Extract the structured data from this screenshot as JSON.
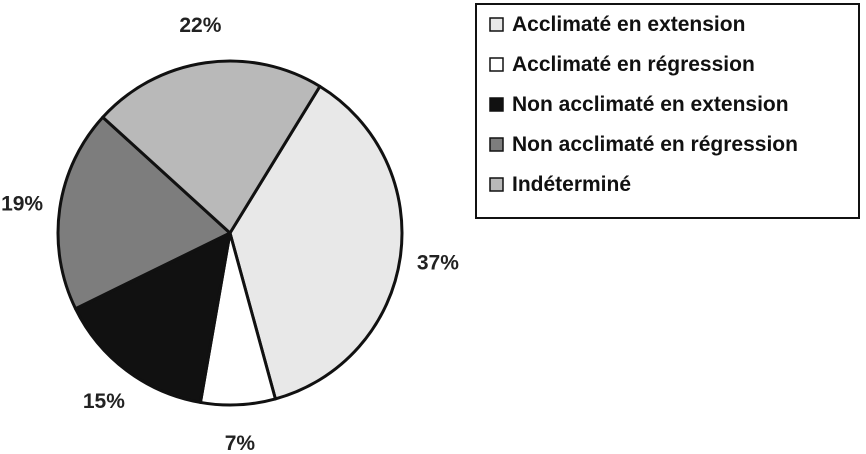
{
  "chart_data": {
    "type": "pie",
    "title": "",
    "legend_position": "top-right",
    "slices": [
      {
        "label": "Acclimaté en extension",
        "value": 37,
        "percent_label": "37%",
        "color": "#e8e8e8"
      },
      {
        "label": "Acclimaté en régression",
        "value": 7,
        "percent_label": "7%",
        "color": "#ffffff"
      },
      {
        "label": "Non acclimaté en extension",
        "value": 15,
        "percent_label": "15%",
        "color": "#111111"
      },
      {
        "label": "Non acclimaté en régression",
        "value": 19,
        "percent_label": "19%",
        "color": "#7d7d7d"
      },
      {
        "label": "Indéterminé",
        "value": 22,
        "percent_label": "22%",
        "color": "#b9b9b9"
      }
    ]
  }
}
